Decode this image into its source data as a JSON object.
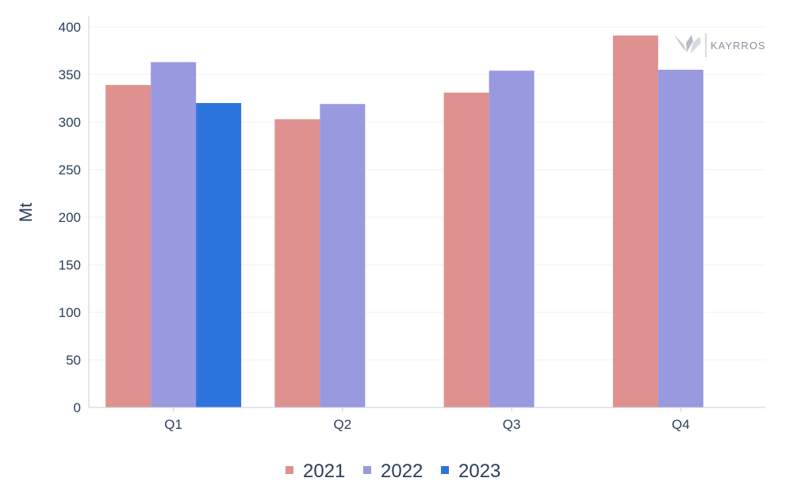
{
  "chart_data": {
    "type": "bar",
    "title": "",
    "xlabel": "",
    "ylabel": "Mt",
    "ylim": [
      0,
      400
    ],
    "yticks": [
      0,
      50,
      100,
      150,
      200,
      250,
      300,
      350,
      400
    ],
    "categories": [
      "Q1",
      "Q2",
      "Q3",
      "Q4"
    ],
    "series": [
      {
        "name": "2021",
        "color": "#de918e",
        "values": [
          339,
          303,
          331,
          391
        ]
      },
      {
        "name": "2022",
        "color": "#9999e0",
        "values": [
          363,
          319,
          354,
          355
        ]
      },
      {
        "name": "2023",
        "color": "#2c74dd",
        "values": [
          320,
          null,
          null,
          null
        ]
      }
    ],
    "grid": true,
    "legend_position": "bottom"
  },
  "watermark": {
    "text": "KAYRROS",
    "icon": "kayrros-logo-icon"
  }
}
